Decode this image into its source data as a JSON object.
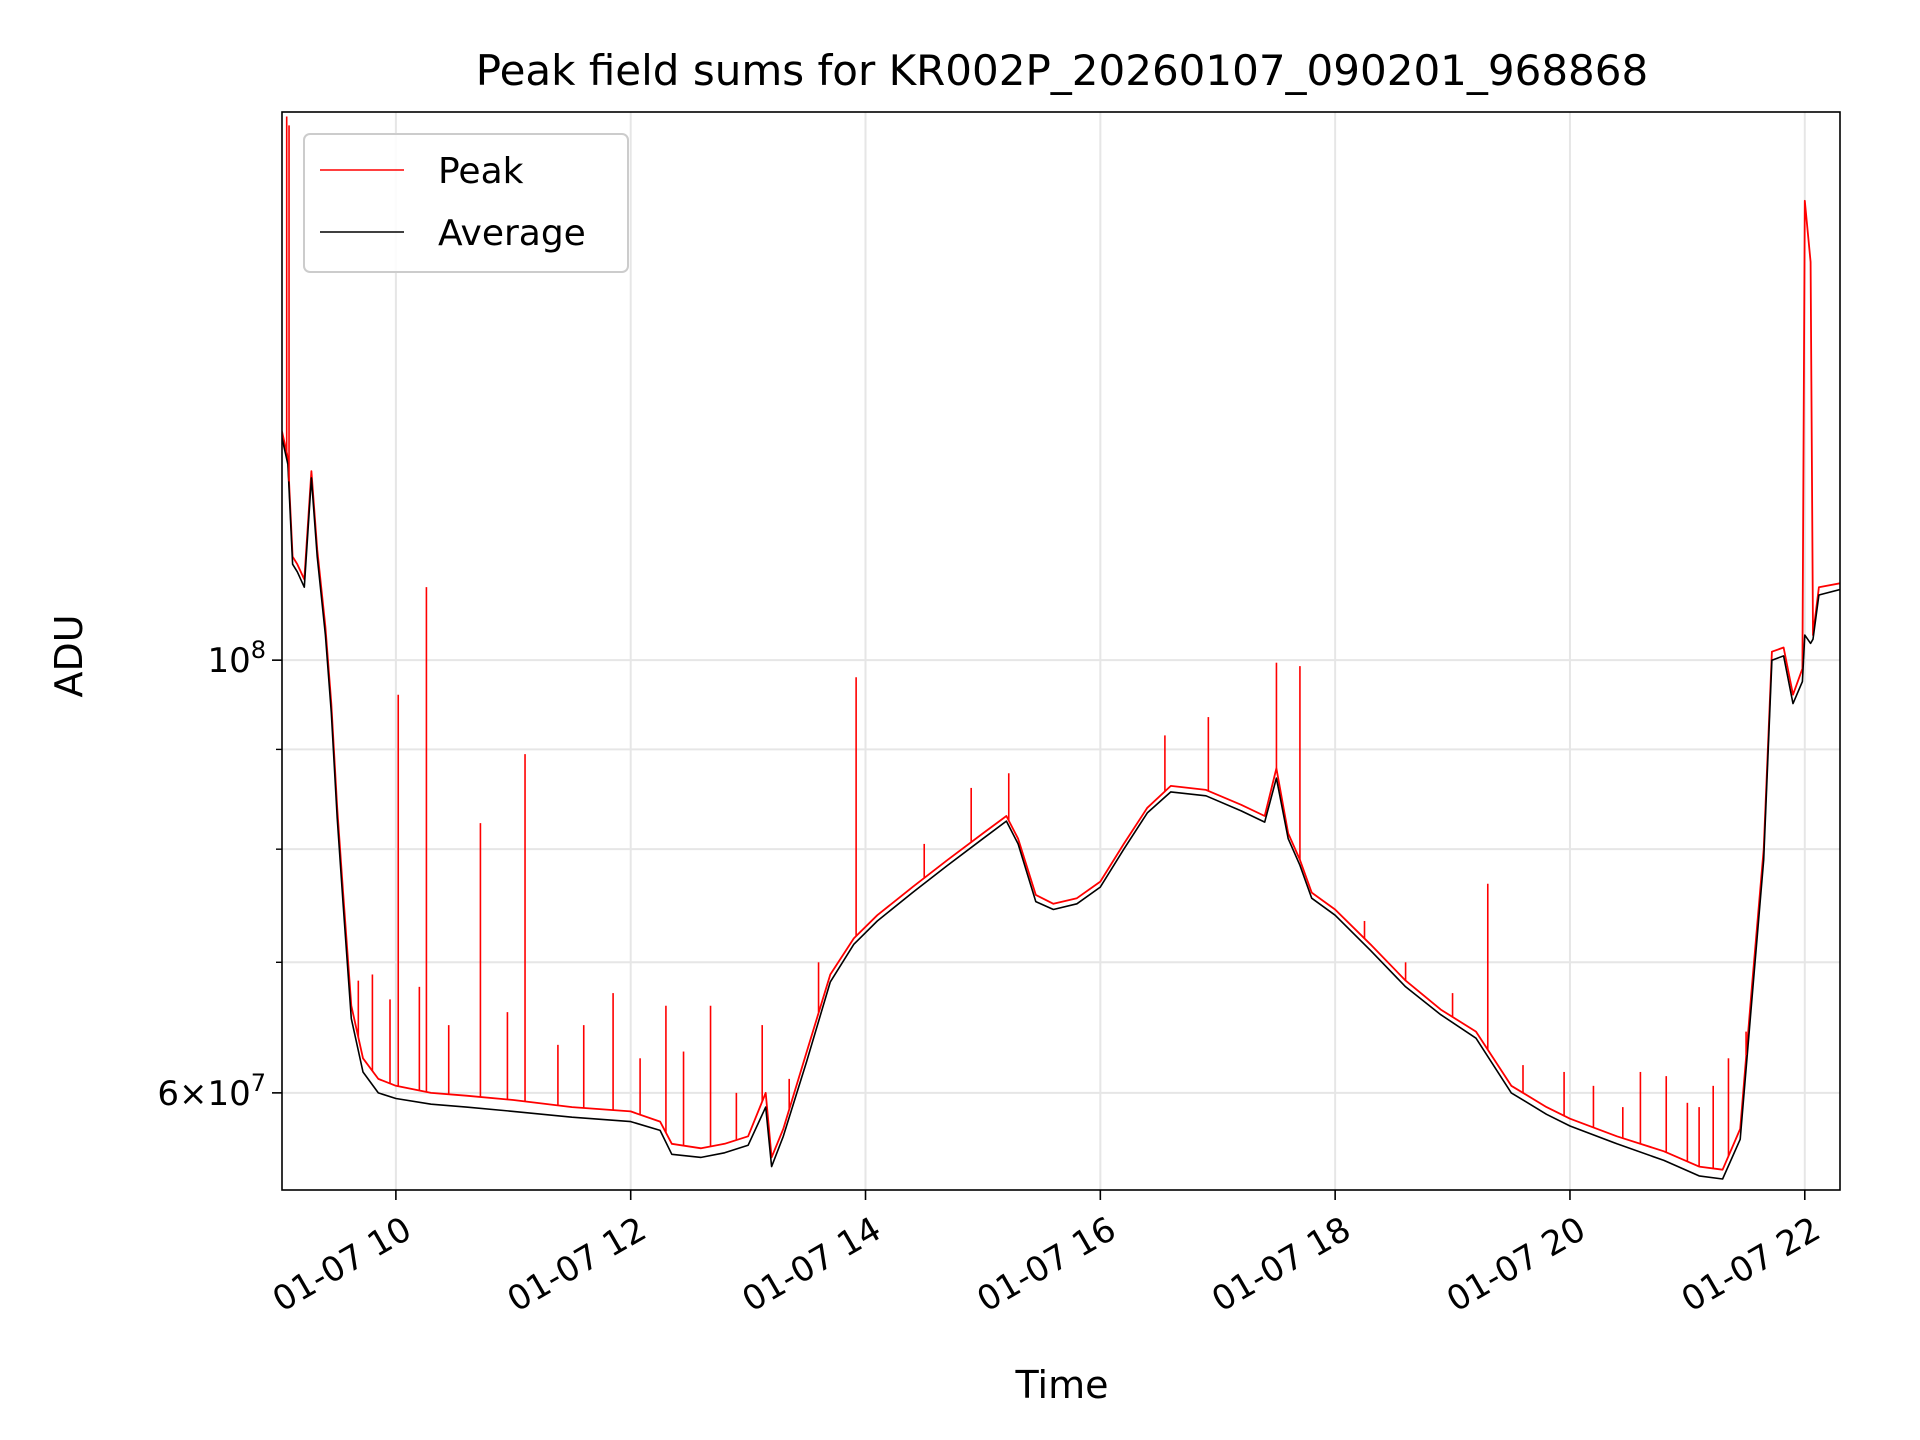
{
  "chart_data": {
    "type": "line",
    "title": "Peak field sums for KR002P_20260107_090201_968868",
    "xlabel": "Time",
    "ylabel": "ADU",
    "y_scale": "log",
    "xlim_hours": [
      9.03,
      22.3
    ],
    "ylim": [
      53500000,
      191000000
    ],
    "grid": true,
    "legend_position": "top-left",
    "x_ticks": [
      {
        "value": 10,
        "label": "01-07 10"
      },
      {
        "value": 12,
        "label": "01-07 12"
      },
      {
        "value": 14,
        "label": "01-07 14"
      },
      {
        "value": 16,
        "label": "01-07 16"
      },
      {
        "value": 18,
        "label": "01-07 18"
      },
      {
        "value": 20,
        "label": "01-07 20"
      },
      {
        "value": 22,
        "label": "01-07 22"
      }
    ],
    "y_major_ticks": [
      {
        "value": 60000000,
        "base": "6",
        "exp": "7",
        "mult": true
      },
      {
        "value": 100000000,
        "base": "10",
        "exp": "8",
        "mult": false
      }
    ],
    "y_minor_ticks": [
      70000000,
      80000000,
      90000000
    ],
    "series": [
      {
        "name": "Peak",
        "color": "#ff0000",
        "points": [
          [
            9.03,
            131000000
          ],
          [
            9.08,
            127000000
          ],
          [
            9.12,
            113000000
          ],
          [
            9.16,
            112000000
          ],
          [
            9.22,
            110000000
          ],
          [
            9.28,
            125000000
          ],
          [
            9.33,
            114000000
          ],
          [
            9.4,
            104000000
          ],
          [
            9.45,
            95000000
          ],
          [
            9.5,
            84000000
          ],
          [
            9.55,
            76000000
          ],
          [
            9.62,
            66500000
          ],
          [
            9.72,
            62500000
          ],
          [
            9.85,
            61000000
          ],
          [
            10.0,
            60500000
          ],
          [
            10.3,
            60000000
          ],
          [
            10.6,
            59800000
          ],
          [
            11.0,
            59500000
          ],
          [
            11.5,
            59000000
          ],
          [
            12.0,
            58700000
          ],
          [
            12.25,
            58000000
          ],
          [
            12.35,
            56500000
          ],
          [
            12.6,
            56200000
          ],
          [
            12.8,
            56500000
          ],
          [
            13.0,
            57000000
          ],
          [
            13.15,
            60000000
          ],
          [
            13.2,
            55600000
          ],
          [
            13.3,
            57500000
          ],
          [
            13.5,
            63000000
          ],
          [
            13.7,
            69000000
          ],
          [
            13.9,
            72000000
          ],
          [
            14.1,
            74000000
          ],
          [
            14.4,
            76500000
          ],
          [
            14.7,
            79000000
          ],
          [
            15.0,
            81500000
          ],
          [
            15.2,
            83200000
          ],
          [
            15.3,
            81000000
          ],
          [
            15.45,
            75800000
          ],
          [
            15.6,
            75000000
          ],
          [
            15.8,
            75500000
          ],
          [
            16.0,
            77000000
          ],
          [
            16.2,
            80500000
          ],
          [
            16.4,
            84000000
          ],
          [
            16.6,
            86200000
          ],
          [
            16.9,
            85800000
          ],
          [
            17.2,
            84300000
          ],
          [
            17.4,
            83200000
          ],
          [
            17.5,
            88000000
          ],
          [
            17.6,
            81500000
          ],
          [
            17.7,
            79000000
          ],
          [
            17.8,
            76000000
          ],
          [
            18.0,
            74500000
          ],
          [
            18.3,
            71500000
          ],
          [
            18.6,
            68500000
          ],
          [
            18.9,
            66200000
          ],
          [
            19.2,
            64500000
          ],
          [
            19.5,
            60500000
          ],
          [
            19.8,
            59000000
          ],
          [
            20.0,
            58200000
          ],
          [
            20.4,
            57000000
          ],
          [
            20.8,
            56000000
          ],
          [
            21.1,
            55000000
          ],
          [
            21.3,
            54800000
          ],
          [
            21.45,
            57500000
          ],
          [
            21.55,
            68000000
          ],
          [
            21.65,
            80000000
          ],
          [
            21.72,
            101000000
          ],
          [
            21.82,
            101500000
          ],
          [
            21.9,
            96000000
          ],
          [
            21.98,
            99000000
          ],
          [
            22.0,
            172000000
          ],
          [
            22.05,
            160000000
          ],
          [
            22.07,
            103000000
          ],
          [
            22.12,
            109000000
          ],
          [
            22.3,
            109500000
          ]
        ]
      },
      {
        "name": "Average",
        "color": "#000000",
        "points": [
          [
            9.03,
            130000000
          ],
          [
            9.08,
            126000000
          ],
          [
            9.12,
            112000000
          ],
          [
            9.16,
            111000000
          ],
          [
            9.22,
            109000000
          ],
          [
            9.28,
            124000000
          ],
          [
            9.33,
            113000000
          ],
          [
            9.4,
            103000000
          ],
          [
            9.45,
            94000000
          ],
          [
            9.5,
            83000000
          ],
          [
            9.55,
            75000000
          ],
          [
            9.62,
            65500000
          ],
          [
            9.72,
            61500000
          ],
          [
            9.85,
            60000000
          ],
          [
            10.0,
            59600000
          ],
          [
            10.3,
            59200000
          ],
          [
            10.6,
            59000000
          ],
          [
            11.0,
            58700000
          ],
          [
            11.5,
            58300000
          ],
          [
            12.0,
            58000000
          ],
          [
            12.25,
            57400000
          ],
          [
            12.35,
            55800000
          ],
          [
            12.6,
            55600000
          ],
          [
            12.8,
            55900000
          ],
          [
            13.0,
            56400000
          ],
          [
            13.15,
            59000000
          ],
          [
            13.2,
            55000000
          ],
          [
            13.3,
            57000000
          ],
          [
            13.5,
            62300000
          ],
          [
            13.7,
            68400000
          ],
          [
            13.9,
            71500000
          ],
          [
            14.1,
            73500000
          ],
          [
            14.4,
            76000000
          ],
          [
            14.7,
            78500000
          ],
          [
            15.0,
            81000000
          ],
          [
            15.2,
            82700000
          ],
          [
            15.3,
            80500000
          ],
          [
            15.45,
            75200000
          ],
          [
            15.6,
            74500000
          ],
          [
            15.8,
            75000000
          ],
          [
            16.0,
            76500000
          ],
          [
            16.2,
            80000000
          ],
          [
            16.4,
            83500000
          ],
          [
            16.6,
            85600000
          ],
          [
            16.9,
            85200000
          ],
          [
            17.2,
            83700000
          ],
          [
            17.4,
            82600000
          ],
          [
            17.5,
            87000000
          ],
          [
            17.6,
            81000000
          ],
          [
            17.7,
            78500000
          ],
          [
            17.8,
            75500000
          ],
          [
            18.0,
            74000000
          ],
          [
            18.3,
            71000000
          ],
          [
            18.6,
            68000000
          ],
          [
            18.9,
            65800000
          ],
          [
            19.2,
            64000000
          ],
          [
            19.5,
            60000000
          ],
          [
            19.8,
            58500000
          ],
          [
            20.0,
            57700000
          ],
          [
            20.4,
            56500000
          ],
          [
            20.8,
            55400000
          ],
          [
            21.1,
            54400000
          ],
          [
            21.3,
            54200000
          ],
          [
            21.45,
            56800000
          ],
          [
            21.55,
            67000000
          ],
          [
            21.65,
            79000000
          ],
          [
            21.72,
            100000000
          ],
          [
            21.82,
            100500000
          ],
          [
            21.9,
            95000000
          ],
          [
            21.98,
            97500000
          ],
          [
            22.0,
            103000000
          ],
          [
            22.05,
            102000000
          ],
          [
            22.07,
            102500000
          ],
          [
            22.12,
            108000000
          ],
          [
            22.3,
            108700000
          ]
        ]
      }
    ],
    "peak_spikes": [
      [
        9.07,
        190000000
      ],
      [
        9.09,
        188000000
      ],
      [
        9.68,
        68500000
      ],
      [
        9.8,
        69000000
      ],
      [
        9.95,
        67000000
      ],
      [
        10.02,
        96000000
      ],
      [
        10.2,
        68000000
      ],
      [
        10.26,
        109000000
      ],
      [
        10.45,
        65000000
      ],
      [
        10.72,
        82500000
      ],
      [
        10.95,
        66000000
      ],
      [
        11.1,
        89500000
      ],
      [
        11.38,
        63500000
      ],
      [
        11.6,
        65000000
      ],
      [
        11.85,
        67500000
      ],
      [
        12.08,
        62500000
      ],
      [
        12.3,
        66500000
      ],
      [
        12.45,
        63000000
      ],
      [
        12.68,
        66500000
      ],
      [
        12.9,
        60000000
      ],
      [
        13.12,
        65000000
      ],
      [
        13.35,
        61000000
      ],
      [
        13.6,
        70000000
      ],
      [
        13.92,
        98000000
      ],
      [
        14.5,
        80500000
      ],
      [
        14.9,
        86000000
      ],
      [
        15.22,
        87500000
      ],
      [
        16.55,
        91500000
      ],
      [
        16.92,
        93500000
      ],
      [
        17.5,
        99700000
      ],
      [
        17.7,
        99300000
      ],
      [
        18.25,
        73500000
      ],
      [
        18.6,
        70000000
      ],
      [
        19.0,
        67500000
      ],
      [
        19.3,
        76800000
      ],
      [
        19.6,
        62000000
      ],
      [
        19.95,
        61500000
      ],
      [
        20.2,
        60500000
      ],
      [
        20.45,
        59000000
      ],
      [
        20.6,
        61500000
      ],
      [
        20.82,
        61200000
      ],
      [
        21.0,
        59300000
      ],
      [
        21.1,
        59000000
      ],
      [
        21.22,
        60500000
      ],
      [
        21.35,
        62500000
      ],
      [
        21.5,
        64500000
      ]
    ],
    "legend": [
      {
        "label": "Peak",
        "color": "#ff0000"
      },
      {
        "label": "Average",
        "color": "#000000"
      }
    ]
  }
}
